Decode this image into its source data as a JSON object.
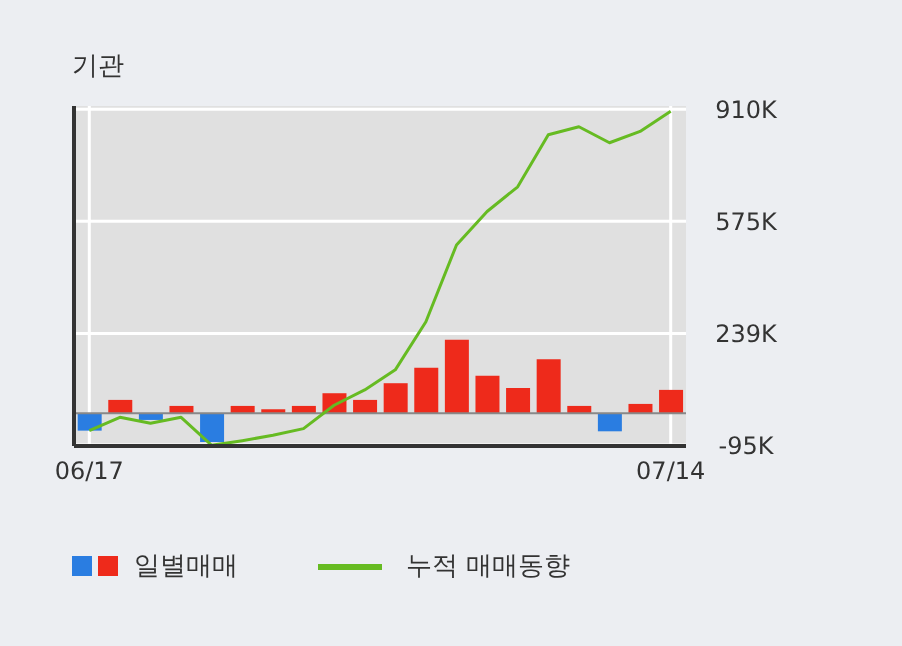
{
  "chart_data": {
    "type": "bar",
    "title": "기관",
    "categories": [
      "06/17",
      null,
      null,
      null,
      null,
      null,
      null,
      null,
      null,
      null,
      null,
      null,
      null,
      null,
      null,
      null,
      null,
      null,
      null,
      "07/14"
    ],
    "series": [
      {
        "name": "일별매매",
        "colors": [
          "#2a7de1",
          "#ee2a1b",
          "#2a7de1",
          "#ee2a1b",
          "#2a7de1",
          "#ee2a1b",
          "#ee2a1b",
          "#ee2a1b",
          "#ee2a1b",
          "#ee2a1b",
          "#ee2a1b",
          "#ee2a1b",
          "#ee2a1b",
          "#ee2a1b",
          "#ee2a1b",
          "#ee2a1b",
          "#ee2a1b",
          "#2a7de1",
          "#ee2a1b",
          "#ee2a1b"
        ],
        "values": [
          -52000,
          40000,
          -20000,
          22000,
          -86000,
          22000,
          12000,
          22000,
          60000,
          40000,
          90000,
          136000,
          220000,
          112000,
          76000,
          162000,
          22000,
          -54000,
          28000,
          70000
        ]
      },
      {
        "name": "누적 매매동향",
        "type": "line",
        "color": "#66bb22",
        "values": [
          -52000,
          -12000,
          -30000,
          -12000,
          -96000,
          -82000,
          -66000,
          -46000,
          24000,
          70000,
          130000,
          274000,
          504000,
          604000,
          678000,
          834000,
          858000,
          810000,
          844000,
          904000
        ]
      }
    ],
    "ylim": [
      -98000,
      920000
    ],
    "yticks": [
      {
        "value": -95000,
        "label": "-95K"
      },
      {
        "value": 239000,
        "label": "239K"
      },
      {
        "value": 575000,
        "label": "575K"
      },
      {
        "value": 910000,
        "label": "910K"
      }
    ],
    "ref_lines": [
      {
        "axis": "y",
        "value": 0,
        "color": "#888888"
      }
    ],
    "grid": true,
    "legend": "bottom"
  }
}
